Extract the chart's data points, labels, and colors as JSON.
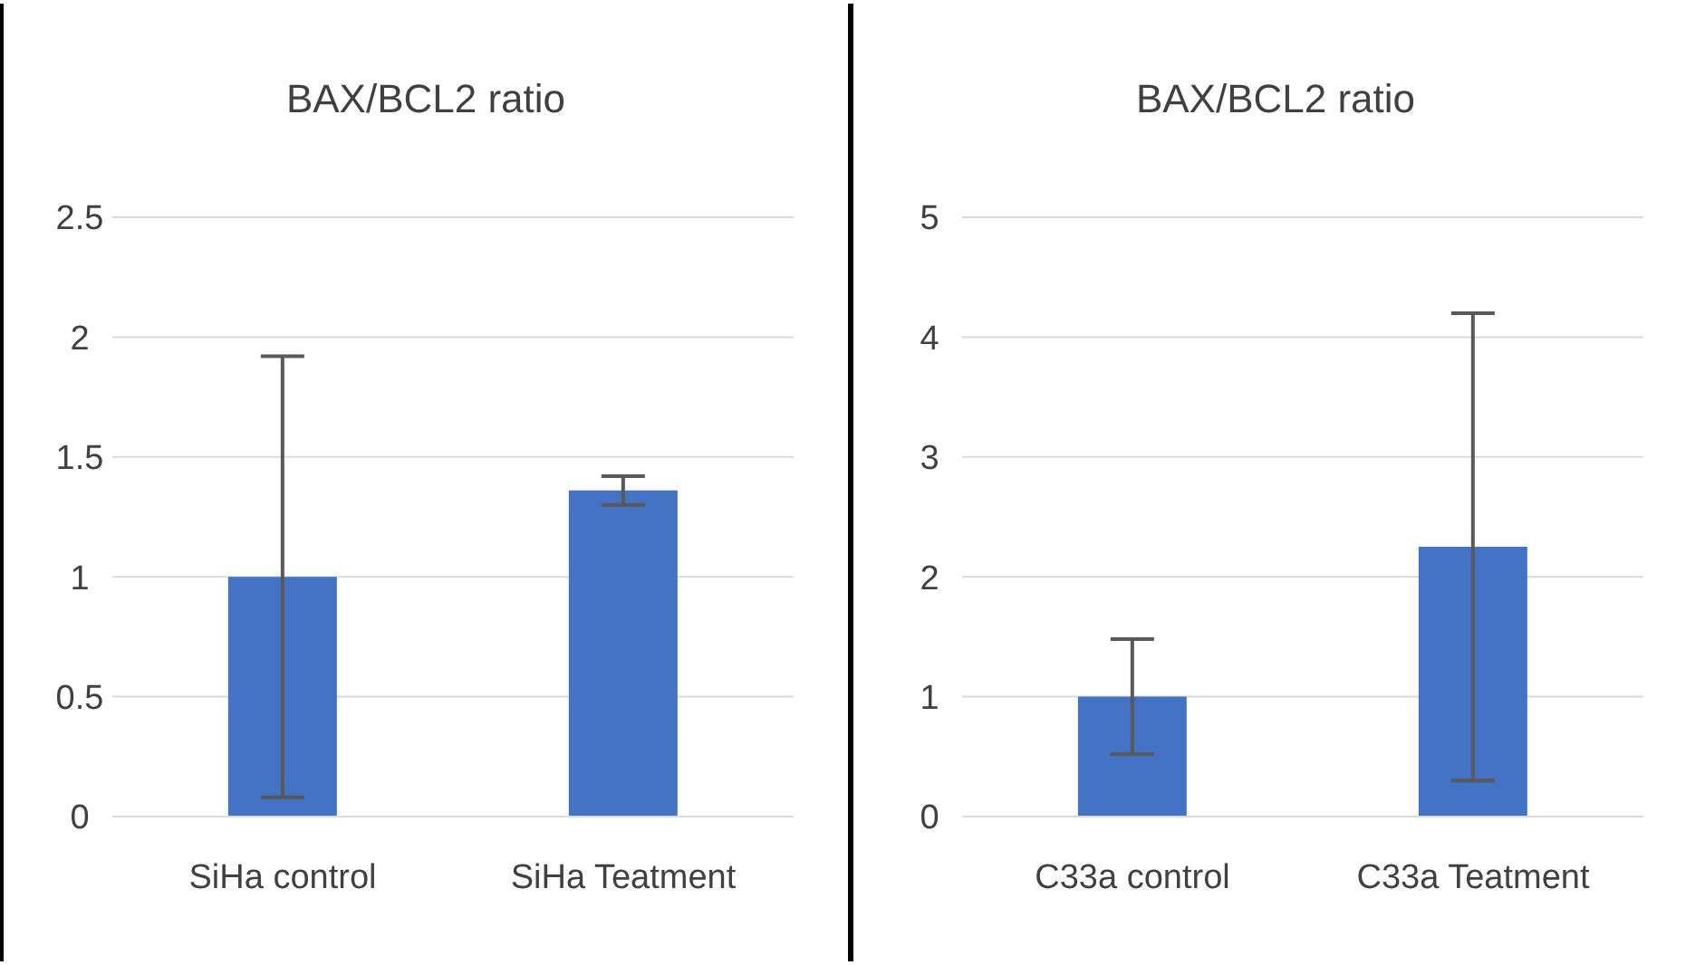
{
  "chart_data": [
    {
      "type": "bar",
      "title": "BAX/BCL2 ratio",
      "categories": [
        "SiHa control",
        "SiHa Teatment"
      ],
      "values": [
        1,
        1.36
      ],
      "errors": [
        0.92,
        0.06
      ],
      "color": "#4472c4",
      "ylim": [
        0,
        2.5
      ],
      "yticks": [
        0,
        0.5,
        1,
        1.5,
        2,
        2.5
      ],
      "grid": "y",
      "legend": false
    },
    {
      "type": "bar",
      "title": "BAX/BCL2 ratio",
      "categories": [
        "C33a control",
        "C33a Teatment"
      ],
      "values": [
        1,
        2.25
      ],
      "errors": [
        0.48,
        1.95
      ],
      "color": "#4472c4",
      "ylim": [
        0,
        5
      ],
      "yticks": [
        0,
        1,
        2,
        3,
        4,
        5
      ],
      "grid": "y",
      "legend": false
    }
  ]
}
